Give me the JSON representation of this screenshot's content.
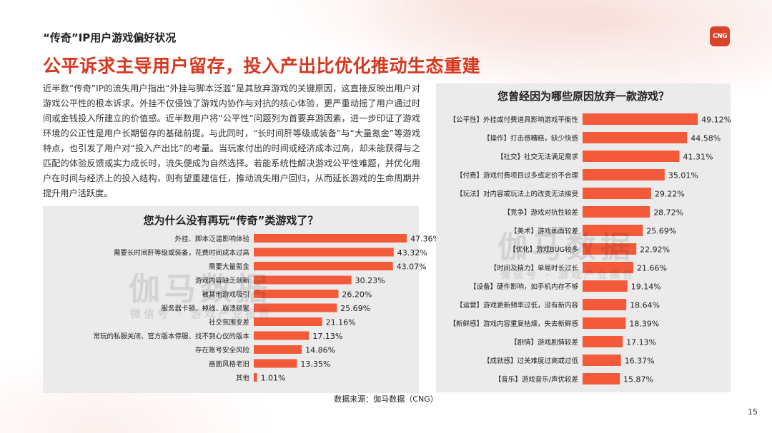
{
  "header": {
    "section_title": "“传奇”IP用户游戏偏好状况",
    "logo_text": "CNG",
    "headline": "公平诉求主导用户留存，投入产出比优化推动生态重建"
  },
  "body_text": "近半数“传奇”IP的流失用户指出“外挂与脚本泛滥”是其放弃游戏的关键原因，这直接反映出用户对游戏公平性的根本诉求。外挂不仅侵蚀了游戏内协作与对抗的核心体验，更严重动摇了用户通过时间或金钱投入所建立的价值感。近半数用户将“公平性”问题列为首要弃游因素，进一步印证了游戏环境的公正性是用户长期留存的基础前提。与此同时，“长时间肝等级或装备”与“大量氪金”等游戏特点，也引发了用户对“投入产出比”的考量。当玩家付出的时间或经济成本过高，却未能获得与之匹配的体验反馈或实力成长时，流失便成为自然选择。若能系统性解决游戏公平性难题，并优化用户在时间与经济上的投入结构，则有望重建信任，推动流失用户回归，从而延长游戏的生命周期并提升用户活跃度。",
  "watermark": {
    "main": "伽马数据",
    "sub": "微信号 · 游戏产业报告"
  },
  "colors": {
    "bar": "#f25a3a",
    "headline": "#d6381f",
    "panel": "#ebebeb"
  },
  "footer": {
    "source": "数据来源：伽马数据（CNG）",
    "page_number": "15"
  },
  "chart_data": [
    {
      "type": "bar",
      "orientation": "horizontal",
      "title": "您为什么没有再玩“传奇”类游戏了？",
      "categories": [
        "外挂、脚本泛滥影响体验",
        "需要长时间肝等级或装备，花费时间成本过高",
        "需要大量氪金",
        "游戏内容缺乏创新",
        "被其他游戏吸引",
        "服务器卡顿、掉线、崩溃频繁",
        "社交氛围变差",
        "常玩的私服关闭、官方版本停服、找不到心仪的版本",
        "存在账号安全风险",
        "画面风格老旧",
        "其他"
      ],
      "values": [
        47.36,
        43.32,
        43.07,
        30.23,
        26.2,
        25.69,
        21.16,
        17.13,
        14.86,
        13.35,
        1.01
      ],
      "labels": [
        "47.36%",
        "43.32%",
        "43.07%",
        "30.23%",
        "26.20%",
        "25.69%",
        "21.16%",
        "17.13%",
        "14.86%",
        "13.35%",
        "1.01%"
      ],
      "xlim": [
        0,
        50
      ],
      "grid": false,
      "legend": "none"
    },
    {
      "type": "bar",
      "orientation": "horizontal",
      "title": "您曾经因为哪些原因放弃一款游戏？",
      "categories": [
        "【公平性】外挂或付费道具影响游戏平衡性",
        "【操作】打击感糟糕，缺少快感",
        "【社交】社交无法满足需求",
        "【付费】游戏付费项目过多或定价不合理",
        "【玩法】对内容或玩法上的改变无法接受",
        "【竞争】游戏对抗性较差",
        "【美术】游戏画面较差",
        "【优化】游戏BUG较多",
        "【时间及精力】单局时长过长",
        "【设备】硬件影响，如手机内存不够",
        "【运营】游戏更新频率过低，没有新内容",
        "【新鲜感】游戏内容重复枯燥，失去新鲜感",
        "【剧情】游戏剧情较差",
        "【成就感】过关难度过高或过低",
        "【音乐】游戏音乐/声优较差"
      ],
      "values": [
        49.12,
        44.58,
        41.31,
        35.01,
        29.22,
        28.72,
        25.69,
        22.92,
        21.66,
        19.14,
        18.64,
        18.39,
        17.13,
        16.37,
        15.87
      ],
      "labels": [
        "49.12%",
        "44.58%",
        "41.31%",
        "35.01%",
        "29.22%",
        "28.72%",
        "25.69%",
        "22.92%",
        "21.66%",
        "19.14%",
        "18.64%",
        "18.39%",
        "17.13%",
        "16.37%",
        "15.87%"
      ],
      "xlim": [
        0,
        50
      ],
      "grid": false,
      "legend": "none"
    }
  ]
}
